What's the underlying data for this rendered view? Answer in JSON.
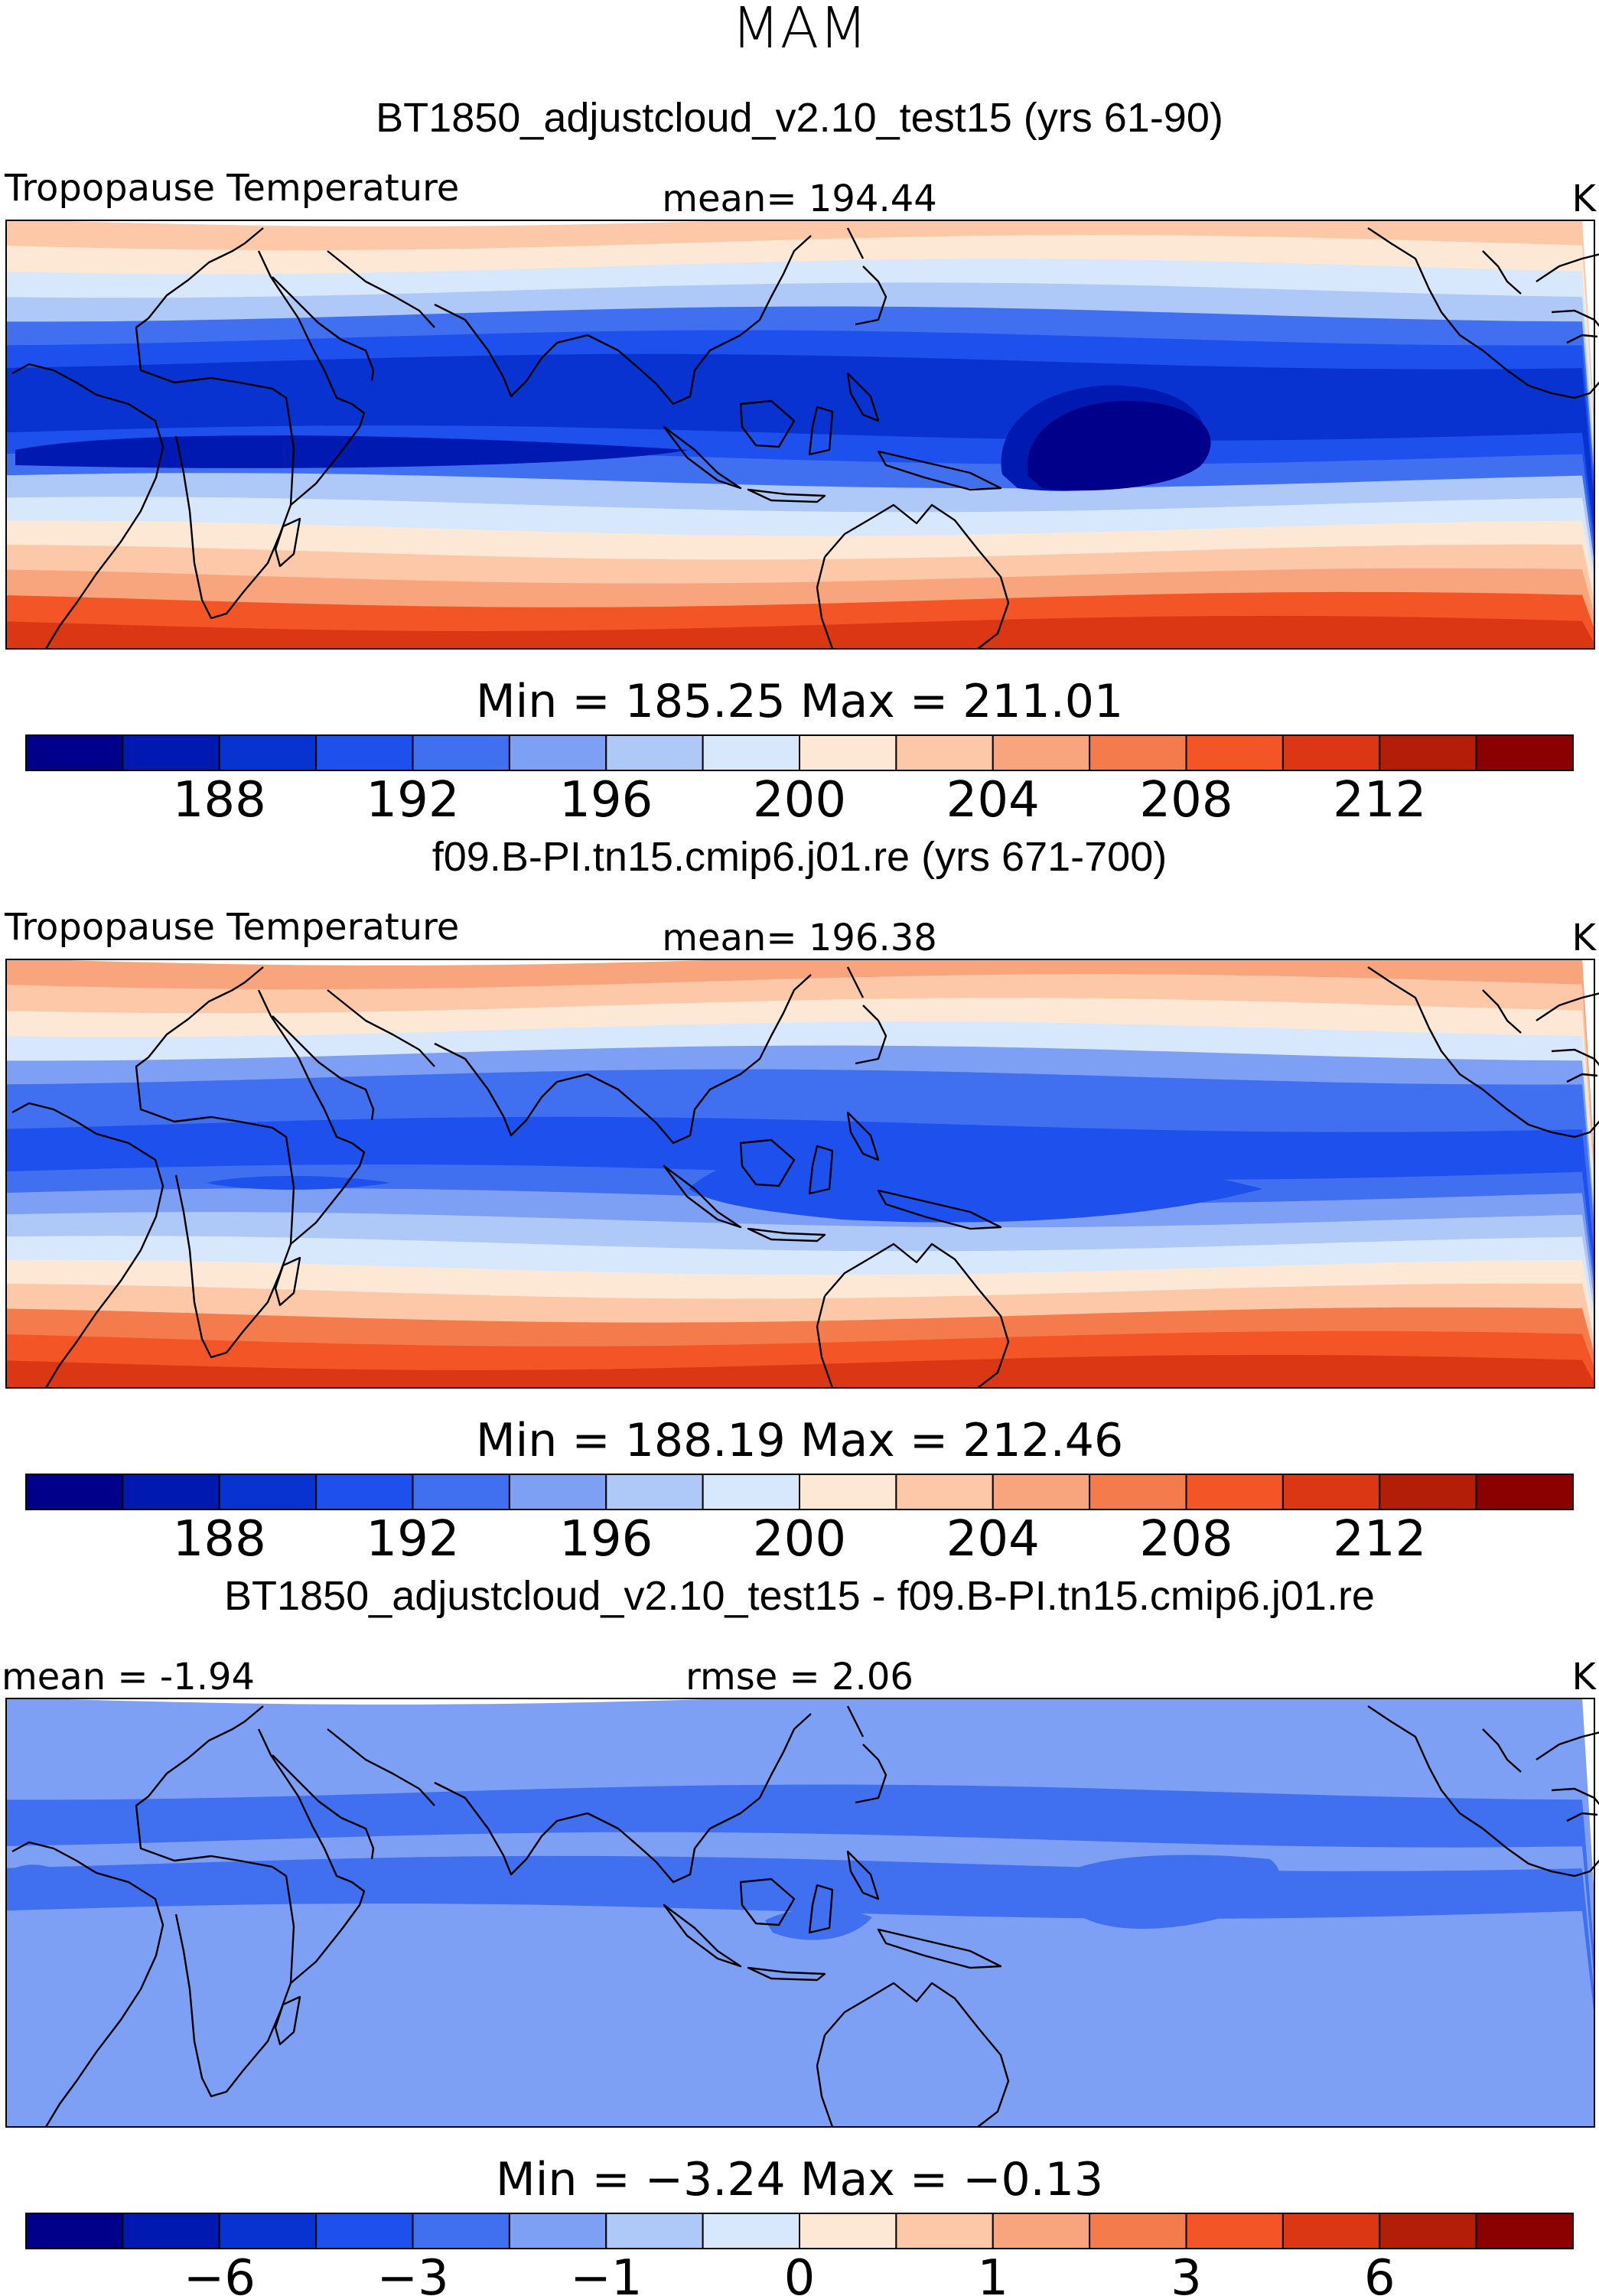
{
  "figure": {
    "season": "MAM",
    "unit": "K",
    "variable": "Tropopause Temperature"
  },
  "chart_data": [
    {
      "type": "heatmap",
      "title": "BT1850_adjustcloud_v2.10_test15 (yrs 61-90)",
      "left_label": "Tropopause Temperature",
      "center_label": "mean=  194.44",
      "unit": "K",
      "mean": 194.44,
      "min": 185.25,
      "max": 211.01,
      "minmax_text": "Min  =  185.25  Max  =  211.01",
      "colorbar": {
        "ticks": [
          "188",
          "192",
          "196",
          "200",
          "204",
          "208",
          "212"
        ],
        "colors": [
          "#00008b",
          "#0019b0",
          "#0833d0",
          "#1e50ee",
          "#4070f0",
          "#7ea0f4",
          "#aec8f8",
          "#d8e8fc",
          "#fde8d6",
          "#fcc8a8",
          "#f8a47c",
          "#f47c4c",
          "#f35526",
          "#dc3714",
          "#b21e08",
          "#8b0000"
        ]
      },
      "bands": [
        202.5,
        200.5,
        198.5,
        196.2,
        193.8,
        191.5,
        189.5,
        188.6,
        189.2,
        190.6,
        193.5,
        196.2,
        198.5,
        200.5,
        202.5,
        205.5,
        208.0,
        210.5
      ],
      "bands_cold": 187.4
    },
    {
      "type": "heatmap",
      "title": "f09.B-PI.tn15.cmip6.j01.re (yrs 671-700)",
      "left_label": "Tropopause Temperature",
      "center_label": "mean=  196.38",
      "unit": "K",
      "mean": 196.38,
      "min": 188.19,
      "max": 212.46,
      "minmax_text": "Min  =  188.19  Max  =  212.46",
      "colorbar": {
        "ticks": [
          "188",
          "192",
          "196",
          "200",
          "204",
          "208",
          "212"
        ],
        "colors": [
          "#00008b",
          "#0019b0",
          "#0833d0",
          "#1e50ee",
          "#4070f0",
          "#7ea0f4",
          "#aec8f8",
          "#d8e8fc",
          "#fde8d6",
          "#fcc8a8",
          "#f8a47c",
          "#f47c4c",
          "#f35526",
          "#dc3714",
          "#b21e08",
          "#8b0000"
        ]
      },
      "bands": [
        204.0,
        202.0,
        200.0,
        198.0,
        195.5,
        193.5,
        192.0,
        191.0,
        191.5,
        192.5,
        195.0,
        197.5,
        199.5,
        201.5,
        203.5,
        206.0,
        208.5,
        211.0
      ],
      "bands_cold": 190.4
    },
    {
      "type": "heatmap",
      "title": "BT1850_adjustcloud_v2.10_test15 - f09.B-PI.tn15.cmip6.j01.re",
      "left_label": "mean =   -1.94",
      "center_label": "rmse =    2.06",
      "unit": "K",
      "mean": -1.94,
      "rmse": 2.06,
      "min": -3.24,
      "max": -0.13,
      "minmax_text": "Min  =   −3.24  Max  =   −0.13",
      "colorbar": {
        "ticks": [
          "−6",
          "−3",
          "−1",
          "0",
          "1",
          "3",
          "6"
        ],
        "colors": [
          "#00008b",
          "#0019b0",
          "#0833d0",
          "#1e50ee",
          "#4070f0",
          "#7ea0f4",
          "#aec8f8",
          "#d8e8fc",
          "#fde8d6",
          "#fcc8a8",
          "#f8a47c",
          "#f47c4c",
          "#f35526",
          "#dc3714",
          "#b21e08",
          "#8b0000"
        ]
      },
      "bands": [
        -1.5,
        -1.5,
        -2.0,
        -2.0,
        -2.2,
        -2.2,
        -2.0,
        -2.3,
        -2.2,
        -2.0,
        -1.6,
        -1.8,
        -1.6,
        -1.2,
        -1.6,
        -1.8,
        -2.0,
        -2.0
      ],
      "bands_cold": -2.6
    }
  ]
}
